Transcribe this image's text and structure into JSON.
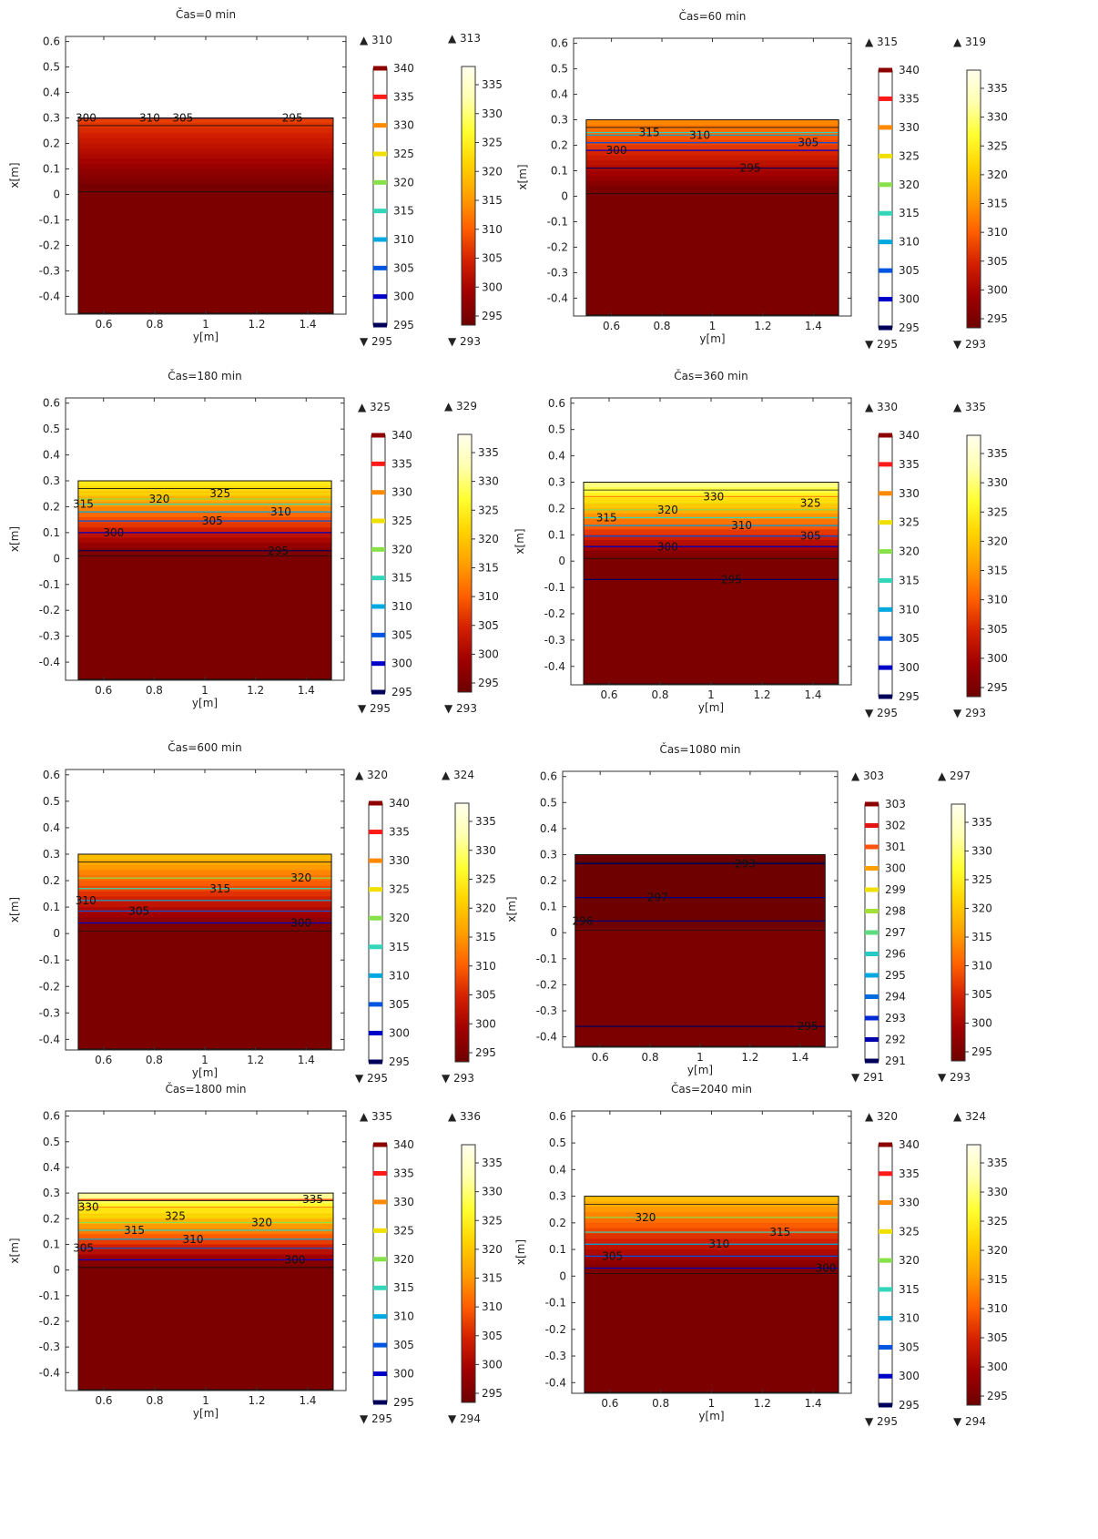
{
  "figure": {
    "xlabel": "y[m]",
    "ylabel": "x[m]",
    "contour_colorbar_ticks": [
      340,
      335,
      330,
      325,
      320,
      315,
      310,
      305,
      300,
      295
    ],
    "surface_colorbar_ticks": [
      335,
      330,
      325,
      320,
      315,
      310,
      305,
      300,
      295
    ],
    "colors": {
      "background": "#ffffff",
      "domain_base": "#7d0000",
      "contour_scale": [
        "#00005a",
        "#0000c8",
        "#0055e0",
        "#00a8e0",
        "#33d6b8",
        "#88e04a",
        "#f0e000",
        "#ff8a00",
        "#ff1a1a",
        "#8c0000"
      ],
      "surface_scale": [
        "#6e0000",
        "#a00000",
        "#d42000",
        "#ff6000",
        "#ffa000",
        "#ffd400",
        "#ffff30",
        "#ffffb0",
        "#ffffee"
      ]
    }
  },
  "chart_data": [
    {
      "type": "heatmap",
      "title": "Čas=0 min",
      "xlabel": "y[m]",
      "ylabel": "x[m]",
      "xlim": [
        0.45,
        1.55
      ],
      "ylim": [
        -0.47,
        0.62
      ],
      "xticks": [
        0.6,
        0.8,
        1,
        1.2,
        1.4
      ],
      "yticks": [
        0.6,
        0.5,
        0.4,
        0.3,
        0.2,
        0.1,
        0,
        -0.1,
        -0.2,
        -0.3,
        -0.4
      ],
      "domain": {
        "y": [
          0.5,
          1.5
        ],
        "x": [
          -0.47,
          0.3
        ]
      },
      "surface_range": [
        293,
        313
      ],
      "contour_range": [
        295,
        310
      ],
      "contour_colorbar_ticks": [
        340,
        335,
        330,
        325,
        320,
        315,
        310,
        305,
        300,
        295
      ],
      "contour_labels": [
        {
          "text": "300",
          "y": 0.53,
          "x": 0.3
        },
        {
          "text": "310",
          "y": 0.78,
          "x": 0.3
        },
        {
          "text": "305",
          "y": 0.91,
          "x": 0.3
        },
        {
          "text": "295",
          "y": 1.34,
          "x": 0.3
        }
      ]
    },
    {
      "type": "heatmap",
      "title": "Čas=60 min",
      "xlabel": "y[m]",
      "ylabel": "x[m]",
      "xlim": [
        0.45,
        1.55
      ],
      "ylim": [
        -0.47,
        0.62
      ],
      "xticks": [
        0.6,
        0.8,
        1,
        1.2,
        1.4
      ],
      "yticks": [
        0.6,
        0.5,
        0.4,
        0.3,
        0.2,
        0.1,
        0,
        -0.1,
        -0.2,
        -0.3,
        -0.4
      ],
      "domain": {
        "y": [
          0.5,
          1.5
        ],
        "x": [
          -0.47,
          0.3
        ]
      },
      "surface_range": [
        293,
        319
      ],
      "contour_range": [
        295,
        315
      ],
      "contour_colorbar_ticks": [
        340,
        335,
        330,
        325,
        320,
        315,
        310,
        305,
        300,
        295
      ],
      "contour_labels": [
        {
          "text": "315",
          "y": 0.75,
          "x": 0.25
        },
        {
          "text": "310",
          "y": 0.95,
          "x": 0.24
        },
        {
          "text": "300",
          "y": 0.62,
          "x": 0.18
        },
        {
          "text": "305",
          "y": 1.38,
          "x": 0.21
        },
        {
          "text": "295",
          "y": 1.15,
          "x": 0.11
        }
      ]
    },
    {
      "type": "heatmap",
      "title": "Čas=180 min",
      "xlabel": "y[m]",
      "ylabel": "x[m]",
      "xlim": [
        0.45,
        1.55
      ],
      "ylim": [
        -0.47,
        0.62
      ],
      "xticks": [
        0.6,
        0.8,
        1,
        1.2,
        1.4
      ],
      "yticks": [
        0.6,
        0.5,
        0.4,
        0.3,
        0.2,
        0.1,
        0,
        -0.1,
        -0.2,
        -0.3,
        -0.4
      ],
      "domain": {
        "y": [
          0.5,
          1.5
        ],
        "x": [
          -0.47,
          0.3
        ]
      },
      "surface_range": [
        293,
        329
      ],
      "contour_range": [
        295,
        325
      ],
      "contour_colorbar_ticks": [
        340,
        335,
        330,
        325,
        320,
        315,
        310,
        305,
        300,
        295
      ],
      "contour_labels": [
        {
          "text": "315",
          "y": 0.52,
          "x": 0.21
        },
        {
          "text": "320",
          "y": 0.82,
          "x": 0.23
        },
        {
          "text": "325",
          "y": 1.06,
          "x": 0.25
        },
        {
          "text": "310",
          "y": 1.3,
          "x": 0.18
        },
        {
          "text": "305",
          "y": 1.03,
          "x": 0.145
        },
        {
          "text": "300",
          "y": 0.64,
          "x": 0.1
        },
        {
          "text": "295",
          "y": 1.29,
          "x": 0.03
        }
      ]
    },
    {
      "type": "heatmap",
      "title": "Čas=360 min",
      "xlabel": "y[m]",
      "ylabel": "x[m]",
      "xlim": [
        0.45,
        1.55
      ],
      "ylim": [
        -0.47,
        0.62
      ],
      "xticks": [
        0.6,
        0.8,
        1,
        1.2,
        1.4
      ],
      "yticks": [
        0.6,
        0.5,
        0.4,
        0.3,
        0.2,
        0.1,
        0,
        -0.1,
        -0.2,
        -0.3,
        -0.4
      ],
      "domain": {
        "y": [
          0.5,
          1.5
        ],
        "x": [
          -0.47,
          0.3
        ]
      },
      "surface_range": [
        293,
        335
      ],
      "contour_range": [
        295,
        330
      ],
      "contour_colorbar_ticks": [
        340,
        335,
        330,
        325,
        320,
        315,
        310,
        305,
        300,
        295
      ],
      "contour_labels": [
        {
          "text": "330",
          "y": 1.01,
          "x": 0.245
        },
        {
          "text": "325",
          "y": 1.39,
          "x": 0.22
        },
        {
          "text": "320",
          "y": 0.83,
          "x": 0.195
        },
        {
          "text": "315",
          "y": 0.59,
          "x": 0.165
        },
        {
          "text": "310",
          "y": 1.12,
          "x": 0.135
        },
        {
          "text": "305",
          "y": 1.39,
          "x": 0.095
        },
        {
          "text": "300",
          "y": 0.83,
          "x": 0.055
        },
        {
          "text": "295",
          "y": 1.08,
          "x": -0.07
        }
      ]
    },
    {
      "type": "heatmap",
      "title": "Čas=600 min",
      "xlabel": "y[m]",
      "ylabel": "x[m]",
      "xlim": [
        0.45,
        1.55
      ],
      "ylim": [
        -0.44,
        0.62
      ],
      "xticks": [
        0.6,
        0.8,
        1,
        1.2,
        1.4
      ],
      "yticks": [
        0.6,
        0.5,
        0.4,
        0.3,
        0.2,
        0.1,
        0,
        -0.1,
        -0.2,
        -0.3,
        -0.4
      ],
      "domain": {
        "y": [
          0.5,
          1.5
        ],
        "x": [
          -0.44,
          0.3
        ]
      },
      "surface_range": [
        293,
        324
      ],
      "contour_range": [
        295,
        320
      ],
      "contour_colorbar_ticks": [
        340,
        335,
        330,
        325,
        320,
        315,
        310,
        305,
        300,
        295
      ],
      "contour_labels": [
        {
          "text": "320",
          "y": 1.38,
          "x": 0.21
        },
        {
          "text": "315",
          "y": 1.06,
          "x": 0.17
        },
        {
          "text": "310",
          "y": 0.53,
          "x": 0.125
        },
        {
          "text": "305",
          "y": 0.74,
          "x": 0.085
        },
        {
          "text": "300",
          "y": 1.38,
          "x": 0.04
        }
      ]
    },
    {
      "type": "heatmap",
      "title": "Čas=1080 min",
      "xlabel": "y[m]",
      "ylabel": "x[m]",
      "xlim": [
        0.45,
        1.55
      ],
      "ylim": [
        -0.44,
        0.62
      ],
      "xticks": [
        0.6,
        0.8,
        1,
        1.2,
        1.4
      ],
      "yticks": [
        0.6,
        0.5,
        0.4,
        0.3,
        0.2,
        0.1,
        0,
        -0.1,
        -0.2,
        -0.3,
        -0.4
      ],
      "domain": {
        "y": [
          0.5,
          1.5
        ],
        "x": [
          -0.44,
          0.3
        ]
      },
      "surface_range": [
        293,
        297
      ],
      "contour_range": [
        291,
        303
      ],
      "contour_colorbar_ticks": [
        303,
        302,
        301,
        300,
        299,
        298,
        297,
        296,
        295,
        294,
        293,
        292,
        291
      ],
      "contour_labels": [
        {
          "text": "293",
          "y": 1.18,
          "x": 0.265
        },
        {
          "text": "297",
          "y": 0.83,
          "x": 0.135
        },
        {
          "text": "296",
          "y": 0.53,
          "x": 0.045
        },
        {
          "text": "295",
          "y": 1.43,
          "x": -0.36
        }
      ]
    },
    {
      "type": "heatmap",
      "title": "Čas=1800 min",
      "xlabel": "y[m]",
      "ylabel": "x[m]",
      "xlim": [
        0.45,
        1.55
      ],
      "ylim": [
        -0.47,
        0.62
      ],
      "xticks": [
        0.6,
        0.8,
        1,
        1.2,
        1.4
      ],
      "yticks": [
        0.6,
        0.5,
        0.4,
        0.3,
        0.2,
        0.1,
        0,
        -0.1,
        -0.2,
        -0.3,
        -0.4
      ],
      "domain": {
        "y": [
          0.5,
          1.5
        ],
        "x": [
          -0.47,
          0.3
        ]
      },
      "surface_range": [
        294,
        336
      ],
      "contour_range": [
        295,
        335
      ],
      "contour_colorbar_ticks": [
        340,
        335,
        330,
        325,
        320,
        315,
        310,
        305,
        300,
        295
      ],
      "contour_labels": [
        {
          "text": "335",
          "y": 1.42,
          "x": 0.275
        },
        {
          "text": "330",
          "y": 0.54,
          "x": 0.245
        },
        {
          "text": "325",
          "y": 0.88,
          "x": 0.21
        },
        {
          "text": "320",
          "y": 1.22,
          "x": 0.185
        },
        {
          "text": "315",
          "y": 0.72,
          "x": 0.155
        },
        {
          "text": "310",
          "y": 0.95,
          "x": 0.12
        },
        {
          "text": "305",
          "y": 0.52,
          "x": 0.085
        },
        {
          "text": "300",
          "y": 1.35,
          "x": 0.04
        }
      ]
    },
    {
      "type": "heatmap",
      "title": "Čas=2040 min",
      "xlabel": "y[m]",
      "ylabel": "x[m]",
      "xlim": [
        0.45,
        1.55
      ],
      "ylim": [
        -0.44,
        0.62
      ],
      "xticks": [
        0.6,
        0.8,
        1,
        1.2,
        1.4
      ],
      "yticks": [
        0.6,
        0.5,
        0.4,
        0.3,
        0.2,
        0.1,
        0,
        -0.1,
        -0.2,
        -0.3,
        -0.4
      ],
      "domain": {
        "y": [
          0.5,
          1.5
        ],
        "x": [
          -0.44,
          0.3
        ]
      },
      "surface_range": [
        294,
        324
      ],
      "contour_range": [
        295,
        320
      ],
      "contour_colorbar_ticks": [
        340,
        335,
        330,
        325,
        320,
        315,
        310,
        305,
        300,
        295
      ],
      "contour_labels": [
        {
          "text": "320",
          "y": 0.74,
          "x": 0.22
        },
        {
          "text": "315",
          "y": 1.27,
          "x": 0.165
        },
        {
          "text": "310",
          "y": 1.03,
          "x": 0.12
        },
        {
          "text": "305",
          "y": 0.61,
          "x": 0.075
        },
        {
          "text": "300",
          "y": 1.45,
          "x": 0.03
        }
      ]
    }
  ]
}
